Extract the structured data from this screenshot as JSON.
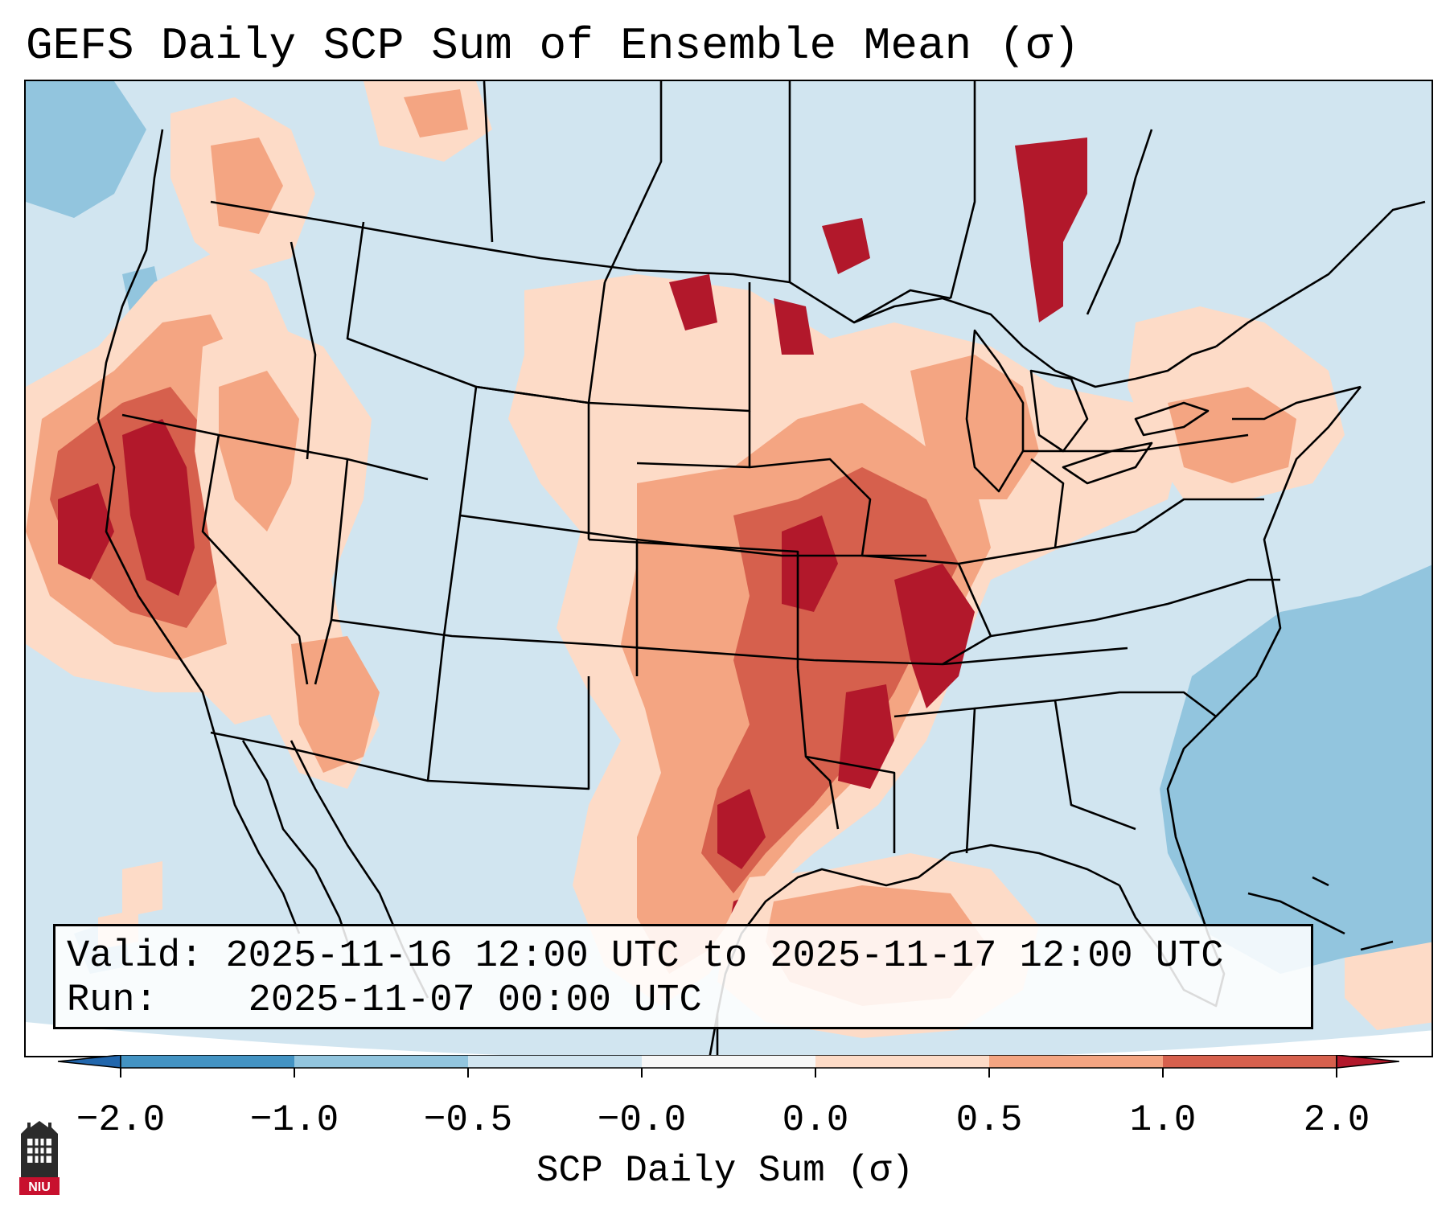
{
  "title": "GEFS Daily SCP Sum of Ensemble Mean (σ)",
  "info": {
    "valid_label": "Valid:",
    "valid_value": "2025-11-16 12:00 UTC to 2025-11-17 12:00 UTC",
    "run_label": "Run:",
    "run_value": "2025-11-07 00:00 UTC"
  },
  "colorbar": {
    "label": "SCP Daily Sum (σ)",
    "ticks": [
      "−2.0",
      "−1.0",
      "−0.5",
      "−0.0",
      "0.0",
      "0.5",
      "1.0",
      "2.0"
    ],
    "bins": [
      {
        "range": "< -2.0",
        "color": "#2166ac"
      },
      {
        "range": "-2.0 to -1.0",
        "color": "#4393c3"
      },
      {
        "range": "-1.0 to -0.5",
        "color": "#92c5de"
      },
      {
        "range": "-0.5 to -0.0",
        "color": "#d1e5f0"
      },
      {
        "range": "-0.0 to 0.0",
        "color": "#f7f7f7"
      },
      {
        "range": "0.0 to 0.5",
        "color": "#fddbc7"
      },
      {
        "range": "0.5 to 1.0",
        "color": "#f4a582"
      },
      {
        "range": "1.0 to 2.0",
        "color": "#d6604d"
      },
      {
        "range": "> 2.0",
        "color": "#b2182b"
      }
    ]
  },
  "logo": {
    "text": "NIU",
    "icon": "niu-castle-icon"
  },
  "colors": {
    "background_field": "#d1e5f0",
    "ocean_negative": "#92c5de",
    "weak_positive": "#fddbc7",
    "moderate_positive": "#f4a582",
    "strong_positive": "#d6604d",
    "extreme_positive": "#b2182b"
  }
}
